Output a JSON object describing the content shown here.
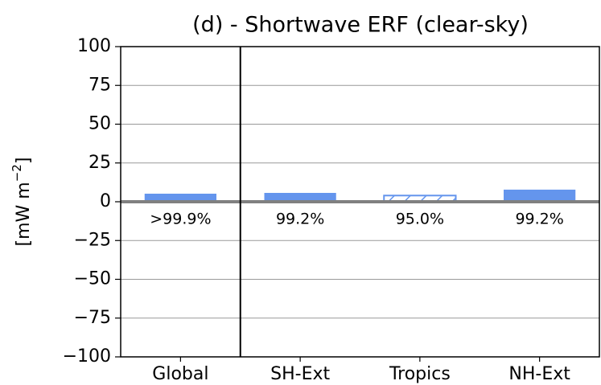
{
  "chart_data": {
    "type": "bar",
    "title": "(d) - Shortwave ERF (clear-sky)",
    "ylabel": {
      "base": "[mW m",
      "sup": "−2",
      "end": "]"
    },
    "categories": [
      "Global",
      "SH-Ext",
      "Tropics",
      "NH-Ext"
    ],
    "values": [
      5.2,
      5.7,
      4,
      7.8
    ],
    "hatched": [
      false,
      false,
      true,
      false
    ],
    "annotations": [
      ">99.9%",
      "99.2%",
      "95.0%",
      "99.2%"
    ],
    "color": "#6495ed",
    "ylim": [
      -100,
      100
    ],
    "yticks": [
      {
        "value": -100,
        "label": "−100"
      },
      {
        "value": -75,
        "label": "−75"
      },
      {
        "value": -50,
        "label": "−50"
      },
      {
        "value": -25,
        "label": "−25"
      },
      0,
      25,
      50,
      75,
      100
    ],
    "grid": true
  }
}
